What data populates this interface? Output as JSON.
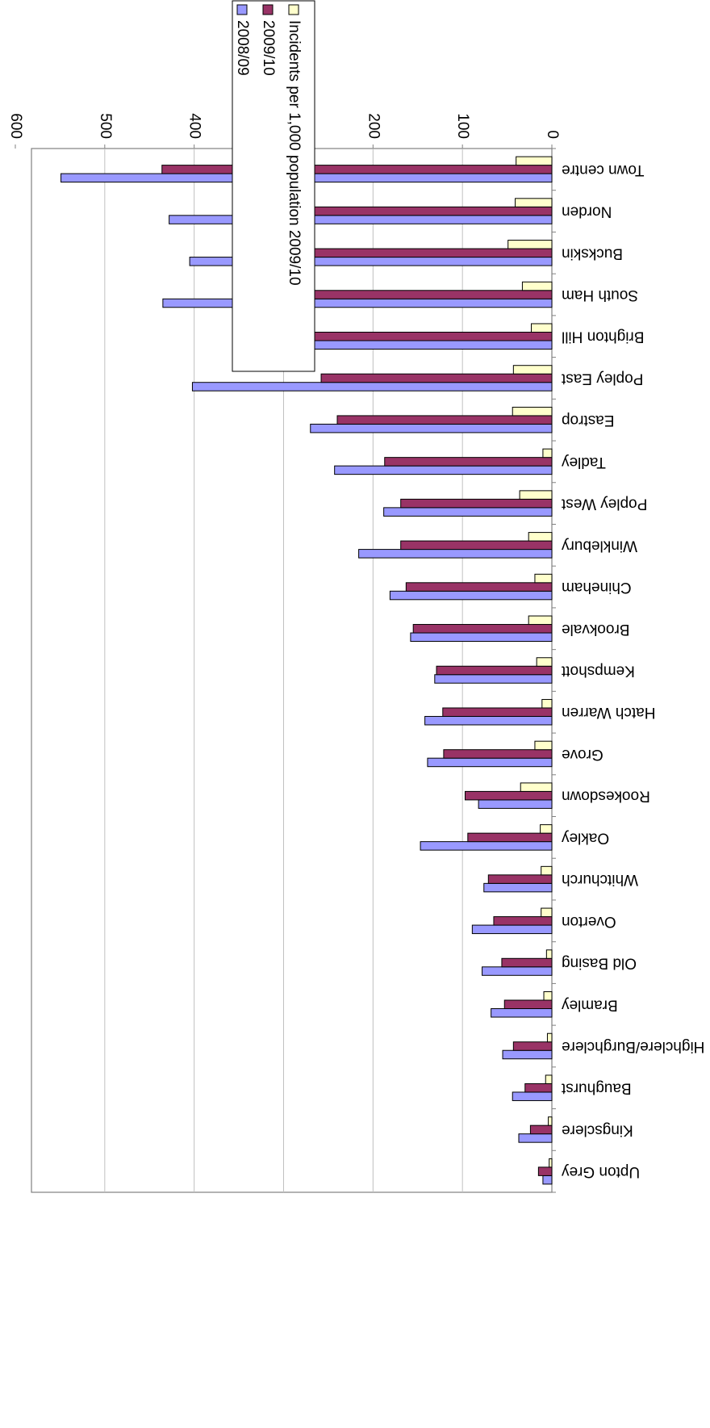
{
  "chart_data": {
    "type": "bar",
    "orientation": "horizontal",
    "rotated": "180deg",
    "categories": [
      "Town centre",
      "Norden",
      "Buckskin",
      "South Ham",
      "Brighton Hill",
      "Popley East",
      "Eastrop",
      "Tadley",
      "Popley West",
      "Winklebury",
      "Chineham",
      "Brookvale",
      "Kempshott",
      "Hatch Warren",
      "Grove",
      "Rookesdown",
      "Oakley",
      "Whitchurch",
      "Overton",
      "Old Basing",
      "Bramley",
      "Highclere/Burghclere",
      "Baughurst",
      "Kingsclere",
      "Upton Grey"
    ],
    "series": [
      {
        "name": "2008/09",
        "color": "#9999ff",
        "values": [
          549,
          428,
          405,
          435,
          324,
          402,
          270,
          243,
          188,
          216,
          181,
          158,
          131,
          142,
          139,
          82,
          147,
          76,
          89,
          78,
          68,
          55,
          44,
          37,
          10
        ]
      },
      {
        "name": "2009/10",
        "color": "#993366",
        "values": [
          436,
          355,
          346,
          299,
          269,
          258,
          240,
          187,
          169,
          169,
          163,
          155,
          129,
          122,
          121,
          97,
          94,
          71,
          65,
          56,
          53,
          43,
          30,
          24,
          15
        ]
      },
      {
        "name": "Incidents per 1,000 population 2009/10",
        "color": "#ffffcc",
        "values": [
          40,
          41,
          49,
          33,
          23,
          43,
          44,
          10,
          36,
          26,
          19,
          26,
          17,
          11,
          19,
          35,
          13,
          12,
          12,
          6,
          9,
          5,
          7,
          4,
          3
        ]
      }
    ],
    "xlim": [
      0,
      600
    ],
    "ticks": [
      "0",
      "100",
      "200",
      "300",
      "400",
      "500",
      "600"
    ],
    "grid": true,
    "legend_position": "top-right"
  }
}
